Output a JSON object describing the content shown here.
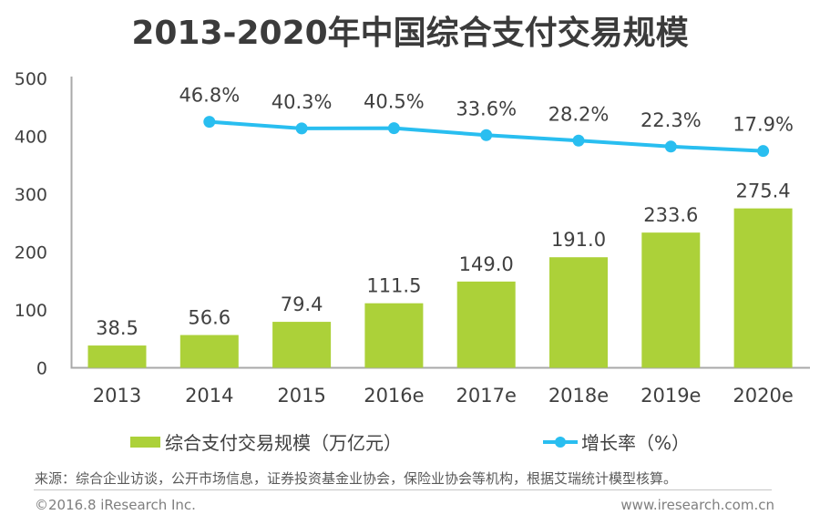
{
  "chart_data": {
    "type": "combo",
    "title": "2013-2020年中国综合支付交易规模",
    "categories": [
      "2013",
      "2014",
      "2015",
      "2016e",
      "2017e",
      "2018e",
      "2019e",
      "2020e"
    ],
    "series": [
      {
        "name": "综合支付交易规模（万亿元）",
        "type": "bar",
        "color": "#acd139",
        "values": [
          38.5,
          56.6,
          79.4,
          111.5,
          149.0,
          191.0,
          233.6,
          275.4
        ],
        "labels": [
          "38.5",
          "56.6",
          "79.4",
          "111.5",
          "149.0",
          "191.0",
          "233.6",
          "275.4"
        ]
      },
      {
        "name": "增长率（%）",
        "type": "line",
        "color": "#29bef0",
        "values": [
          null,
          46.8,
          40.3,
          40.5,
          33.6,
          28.2,
          22.3,
          17.9
        ],
        "labels": [
          null,
          "46.8%",
          "40.3%",
          "40.5%",
          "33.6%",
          "28.2%",
          "22.3%",
          "17.9%"
        ]
      }
    ],
    "xlabel": "",
    "ylabel": "",
    "ylim": [
      0,
      500
    ],
    "yticks": [
      0,
      100,
      200,
      300,
      400,
      500
    ],
    "grid": false,
    "legend_position": "bottom",
    "axis_color": "#a9a9a9",
    "text_color": "#404040"
  },
  "footer": {
    "source": "来源：综合企业访谈，公开市场信息，证券投资基金业协会，保险业协会等机构，根据艾瑞统计模型核算。",
    "copyright": "©2016.8 iResearch Inc.",
    "website": "www.iresearch.com.cn"
  }
}
